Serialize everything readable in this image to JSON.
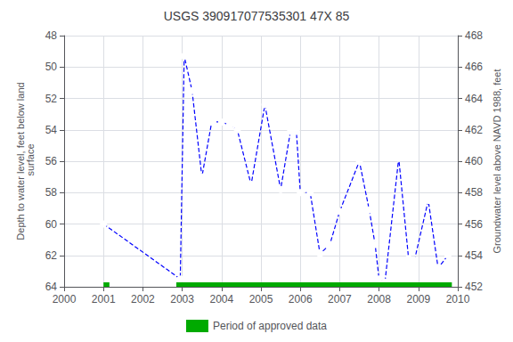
{
  "chart_data": {
    "type": "line",
    "title": "USGS 390917077535301 47X 85",
    "ylabel": "Depth to water level, feet below land\n surface",
    "y2label": "Groundwater level above NAVD 1988, feet",
    "x": [
      2001.0,
      2002.95,
      2003.05,
      2003.25,
      2003.5,
      2003.75,
      2004.0,
      2004.2,
      2004.4,
      2004.75,
      2005.1,
      2005.5,
      2005.75,
      2005.9,
      2006.0,
      2006.25,
      2006.5,
      2006.75,
      2007.0,
      2007.5,
      2007.75,
      2007.9,
      2008.0,
      2008.15,
      2008.5,
      2008.75,
      2008.9,
      2009.25,
      2009.5,
      2009.75
    ],
    "series": [
      {
        "color": "blue",
        "marker": "circle",
        "line_style": "dashed",
        "values": [
          60.0,
          63.5,
          49.3,
          51.5,
          57.0,
          53.5,
          53.5,
          53.7,
          54.0,
          57.5,
          52.4,
          57.8,
          54.1,
          54.1,
          58.0,
          58.0,
          61.9,
          61.3,
          59.2,
          56.0,
          59.1,
          61.3,
          63.5,
          63.7,
          55.8,
          62.2,
          62.3,
          58.5,
          62.8,
          62.0
        ]
      },
      {
        "name": "Period of approved data",
        "type": "span",
        "color": "#00aa00",
        "start": [
          2001.0,
          2002.85
        ],
        "end": [
          2001.15,
          2009.85
        ]
      }
    ],
    "xlim": [
      2000,
      2010
    ],
    "xticks": [
      2000,
      2001,
      2002,
      2003,
      2004,
      2005,
      2006,
      2007,
      2008,
      2009,
      2010
    ],
    "ylim": [
      64,
      48
    ],
    "yticks": [
      48,
      50,
      52,
      54,
      56,
      58,
      60,
      62,
      64
    ],
    "y2lim": [
      452,
      468
    ],
    "y2ticks": [
      452,
      454,
      456,
      458,
      460,
      462,
      464,
      466,
      468
    ],
    "grid": true,
    "legend": "bottom"
  }
}
